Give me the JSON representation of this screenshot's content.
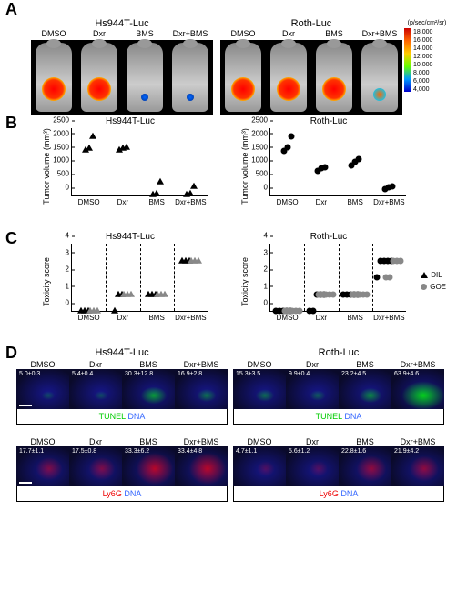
{
  "panel_labels": {
    "a": "A",
    "b": "B",
    "c": "C",
    "d": "D"
  },
  "cell_lines": {
    "hs": "Hs944T-Luc",
    "roth": "Roth-Luc"
  },
  "treatments": [
    "DMSO",
    "Dxr",
    "BMS",
    "Dxr+BMS"
  ],
  "colorbar": {
    "unit": "(p/sec/cm²/sr)",
    "ticks": [
      "18,000",
      "16,000",
      "14,000",
      "12,000",
      "10,000",
      "8,000",
      "6,000",
      "4,000"
    ],
    "colors": [
      "#cc0000",
      "#ff6600",
      "#ffcc00",
      "#66ff00",
      "#0099ff",
      "#0000cc"
    ]
  },
  "panel_b": {
    "ylabel": "Tumor volume (mm³)",
    "ylim": [
      0,
      2500
    ],
    "ytick_step": 500,
    "xcats": [
      "DMSO",
      "Dxr",
      "BMS",
      "Dxr+BMS"
    ],
    "hs": {
      "marker": "triangle",
      "color": "#000000",
      "data": {
        "DMSO": [
          1700,
          1750,
          2200
        ],
        "Dxr": [
          1700,
          1750,
          1800
        ],
        "BMS": [
          50,
          70,
          500
        ],
        "Dxr+BMS": [
          50,
          60,
          350
        ]
      }
    },
    "roth": {
      "marker": "circle",
      "color": "#000000",
      "data": {
        "DMSO": [
          1650,
          1800,
          2200
        ],
        "Dxr": [
          900,
          1000,
          1050
        ],
        "BMS": [
          1100,
          1250,
          1350
        ],
        "Dxr+BMS": [
          240,
          300,
          330
        ]
      }
    }
  },
  "panel_c": {
    "ylabel": "Toxicity score",
    "ylim": [
      0,
      4
    ],
    "ytick_step": 1,
    "xcats": [
      "DMSO",
      "Dxr",
      "BMS",
      "Dxr+BMS"
    ],
    "legend": [
      {
        "label": "DIL",
        "marker": "triangle",
        "color": "#000000"
      },
      {
        "label": "GOE",
        "marker": "circle",
        "color": "#888888"
      }
    ],
    "hs": {
      "DIL": {
        "DMSO": [
          0,
          0,
          0
        ],
        "Dxr": [
          0,
          1,
          1
        ],
        "BMS": [
          1,
          1,
          1
        ],
        "Dxr+BMS": [
          3,
          3,
          3
        ]
      },
      "GOE": {
        "DMSO": [
          0,
          0,
          0
        ],
        "Dxr": [
          1,
          1,
          1
        ],
        "BMS": [
          1,
          1,
          1
        ],
        "Dxr+BMS": [
          3,
          3,
          3
        ]
      }
    },
    "roth": {
      "DIL": {
        "DMSO": [
          0,
          0,
          0,
          0,
          0
        ],
        "Dxr": [
          0,
          0,
          1,
          1,
          1
        ],
        "BMS": [
          1,
          1,
          1,
          1,
          1
        ],
        "Dxr+BMS": [
          2,
          3,
          3,
          3,
          3
        ]
      },
      "GOE": {
        "DMSO": [
          0,
          0,
          0,
          0,
          0
        ],
        "Dxr": [
          1,
          1,
          1,
          1,
          1
        ],
        "BMS": [
          1,
          1,
          1,
          1,
          1
        ],
        "Dxr+BMS": [
          2,
          2,
          3,
          3,
          3
        ]
      }
    }
  },
  "panel_d": {
    "rows": [
      {
        "stain": "TUNEL",
        "stain_color": "#00cc00",
        "dna": "DNA",
        "dna_color": "#3366ff",
        "hs": [
          "5.0±0.3",
          "5.4±0.4",
          "30.3±12.8",
          "16.9±2.8"
        ],
        "roth": [
          "15.3±3.5",
          "9.9±0.4",
          "23.2±4.5",
          "63.9±4.6"
        ]
      },
      {
        "stain": "Ly6G",
        "stain_color": "#ee0000",
        "dna": "DNA",
        "dna_color": "#3366ff",
        "hs": [
          "17.7±1.1",
          "17.5±0.8",
          "33.3±6.2",
          "33.4±4.8"
        ],
        "roth": [
          "4.7±1.1",
          "5.6±1.2",
          "22.8±1.6",
          "21.9±4.2"
        ]
      }
    ]
  }
}
